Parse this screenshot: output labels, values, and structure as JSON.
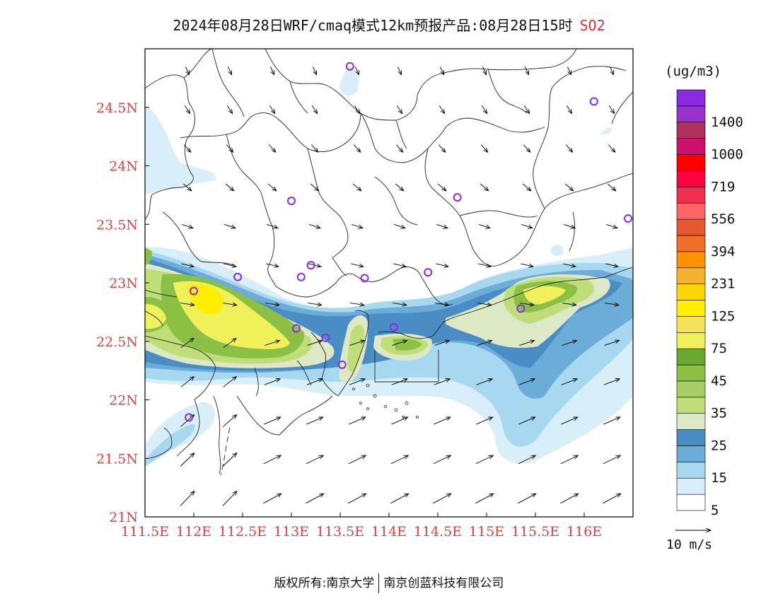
{
  "title": {
    "main": "2024年08月28日WRF/cmaq模式12km预报产品:08月28日15时",
    "pollutant": "SO2"
  },
  "colorbar": {
    "units": "(ug/m3)",
    "levels": [
      {
        "label": "5",
        "color": "#ffffff"
      },
      {
        "label": "",
        "color": "#d8eef8"
      },
      {
        "label": "15",
        "color": "#a8d8f0"
      },
      {
        "label": "",
        "color": "#6cacd8"
      },
      {
        "label": "25",
        "color": "#4a8cc4"
      },
      {
        "label": "",
        "color": "#dde8c4"
      },
      {
        "label": "35",
        "color": "#bfde7a"
      },
      {
        "label": "",
        "color": "#a8cf66"
      },
      {
        "label": "45",
        "color": "#8cc044"
      },
      {
        "label": "",
        "color": "#6aa632"
      },
      {
        "label": "75",
        "color": "#f0f05a"
      },
      {
        "label": "",
        "color": "#f5e45a"
      },
      {
        "label": "125",
        "color": "#ffee00"
      },
      {
        "label": "",
        "color": "#ffd700"
      },
      {
        "label": "231",
        "color": "#f5b030"
      },
      {
        "label": "",
        "color": "#ff9000"
      },
      {
        "label": "394",
        "color": "#f07028"
      },
      {
        "label": "",
        "color": "#e85830"
      },
      {
        "label": "556",
        "color": "#ff6464"
      },
      {
        "label": "",
        "color": "#f03050"
      },
      {
        "label": "719",
        "color": "#ff0040"
      },
      {
        "label": "",
        "color": "#ff0000"
      },
      {
        "label": "1000",
        "color": "#cc1070"
      },
      {
        "label": "",
        "color": "#b03060"
      },
      {
        "label": "1400",
        "color": "#9932cc"
      },
      {
        "label": "",
        "color": "#8a2be2"
      }
    ]
  },
  "axes": {
    "x_ticks": [
      "111.5E",
      "112E",
      "112.5E",
      "113E",
      "113.5E",
      "114E",
      "114.5E",
      "115E",
      "115.5E",
      "116E"
    ],
    "y_ticks": [
      "24.5N",
      "24N",
      "23.5N",
      "23N",
      "22.5N",
      "22N",
      "21.5N",
      "21N"
    ],
    "tick_color": "#e04040"
  },
  "chart_data": {
    "type": "heatmap",
    "variable": "SO2",
    "units": "(ug/m3)",
    "xlim_lon": [
      111.5,
      116.5
    ],
    "ylim_lat": [
      21.0,
      25.0
    ],
    "stations": [
      {
        "lon": 113.6,
        "lat": 24.85
      },
      {
        "lon": 116.1,
        "lat": 24.55
      },
      {
        "lon": 113.0,
        "lat": 23.7
      },
      {
        "lon": 114.7,
        "lat": 23.73
      },
      {
        "lon": 116.45,
        "lat": 23.55
      },
      {
        "lon": 112.45,
        "lat": 23.05
      },
      {
        "lon": 113.1,
        "lat": 23.05
      },
      {
        "lon": 113.2,
        "lat": 23.15
      },
      {
        "lon": 113.75,
        "lat": 23.04
      },
      {
        "lon": 114.4,
        "lat": 23.09
      },
      {
        "lon": 112.0,
        "lat": 22.93
      },
      {
        "lon": 115.35,
        "lat": 22.78
      },
      {
        "lon": 113.05,
        "lat": 22.61
      },
      {
        "lon": 113.35,
        "lat": 22.53
      },
      {
        "lon": 114.05,
        "lat": 22.62
      },
      {
        "lon": 113.52,
        "lat": 22.3
      },
      {
        "lon": 111.95,
        "lat": 21.85
      }
    ]
  },
  "wind_legend": {
    "label": "10  m/s"
  },
  "footer": {
    "left": "版权所有:南京大学",
    "right": "南京创蓝科技有限公司"
  }
}
